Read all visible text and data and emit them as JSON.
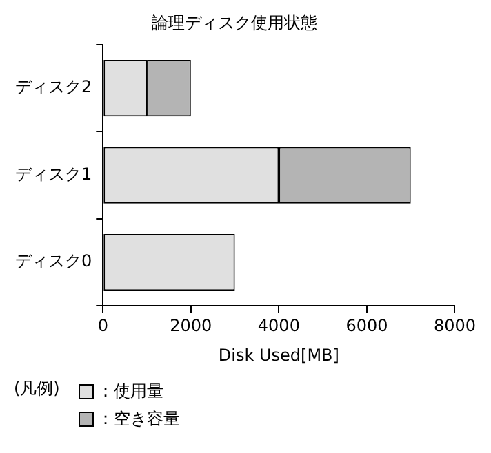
{
  "chart_data": {
    "type": "bar",
    "title": "論理ディスク使用状態",
    "categories": [
      "ディスク2",
      "ディスク1",
      "ディスク0"
    ],
    "orientation": "horizontal",
    "stacked": true,
    "series": [
      {
        "name": "：使用量",
        "color": "#e0e0e0",
        "values": [
          1000,
          4000,
          3000
        ]
      },
      {
        "name": "：空き容量",
        "color": "#b4b4b4",
        "values": [
          1000,
          3000,
          null
        ]
      }
    ],
    "xlim": [
      0,
      8000
    ],
    "xticks": [
      0,
      2000,
      4000,
      6000,
      8000
    ],
    "xlabel": "Disk Used[MB]",
    "grid": false,
    "legend": "bottom",
    "legend_title": "(凡例)"
  }
}
